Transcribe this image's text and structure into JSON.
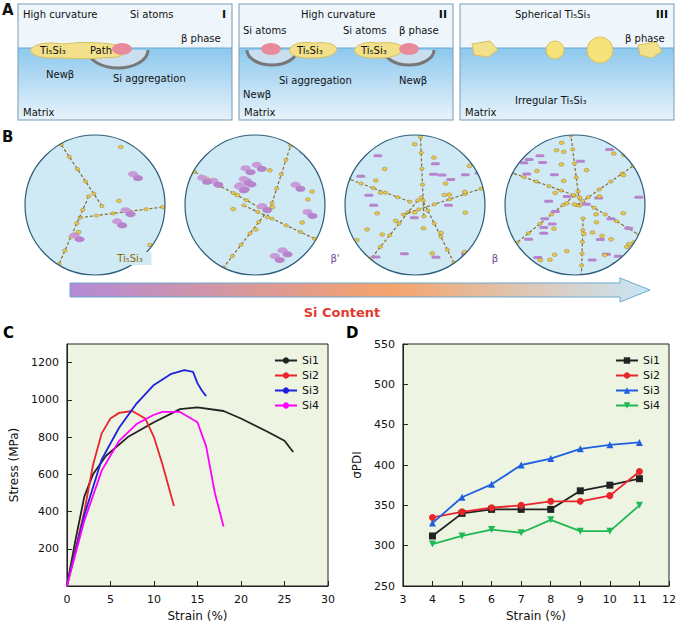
{
  "diagrams": {
    "A": {
      "letter": "A",
      "boxes": [
        {
          "numeral": "I",
          "labels": [
            "High curvature",
            "Si atoms",
            "β phase",
            "Ti₅Si₃",
            "Path",
            "Newβ",
            "Si aggregation",
            "Matrix"
          ]
        },
        {
          "numeral": "II",
          "labels": [
            "High curvature",
            "Si atoms",
            "Si atoms",
            "β phase",
            "Ti₅Si₃",
            "Ti₅Si₃",
            "Si aggregation",
            "Newβ",
            "Newβ",
            "Matrix"
          ]
        },
        {
          "numeral": "III",
          "labels": [
            "Spherical Ti₅Si₃",
            "β phase",
            "Irregular Ti₅Si₃",
            "Matrix"
          ]
        }
      ]
    },
    "B": {
      "letter": "B",
      "labels": [
        "Ti₅Si₃",
        "β'",
        "β"
      ],
      "arrow_label": "Si Content"
    }
  },
  "chart_data": [
    {
      "panel": "C",
      "type": "line",
      "xlabel": "Strain (%)",
      "ylabel": "Stress (MPa)",
      "xlim": [
        0,
        30
      ],
      "xticks": [
        0,
        5,
        10,
        15,
        20,
        25,
        30
      ],
      "ylim": [
        0,
        1300
      ],
      "yticks": [
        200,
        400,
        600,
        800,
        1000,
        1200
      ],
      "grid": false,
      "legend": "upper right",
      "series": [
        {
          "name": "Si1",
          "color": "#222222",
          "x": [
            0,
            1,
            2,
            3,
            4.5,
            7,
            10,
            13,
            15,
            18,
            20,
            23,
            25,
            26
          ],
          "values": [
            0,
            250,
            480,
            600,
            700,
            800,
            880,
            950,
            960,
            940,
            900,
            830,
            780,
            720
          ]
        },
        {
          "name": "Si2",
          "color": "#e8262a",
          "x": [
            0,
            1,
            2,
            3,
            4,
            5,
            6,
            7.5,
            9,
            10,
            11,
            12.3
          ],
          "values": [
            0,
            200,
            400,
            650,
            820,
            900,
            930,
            940,
            900,
            800,
            650,
            430
          ]
        },
        {
          "name": "Si3",
          "color": "#2020e0",
          "x": [
            0,
            2,
            4,
            6,
            8,
            10,
            12,
            13.5,
            14.5,
            15,
            15.5,
            16
          ],
          "values": [
            0,
            380,
            680,
            850,
            980,
            1080,
            1140,
            1160,
            1150,
            1090,
            1050,
            1020
          ]
        },
        {
          "name": "Si4",
          "color": "#ff00ff",
          "x": [
            0,
            2,
            4,
            6,
            8,
            10,
            11,
            13,
            15,
            16,
            17,
            18
          ],
          "values": [
            0,
            350,
            620,
            780,
            870,
            920,
            935,
            935,
            880,
            750,
            500,
            320
          ]
        }
      ]
    },
    {
      "panel": "D",
      "type": "line",
      "xlabel": "Strain (%)",
      "ylabel": "σPDI",
      "xlim": [
        3,
        12
      ],
      "xticks": [
        3,
        4,
        5,
        6,
        7,
        8,
        9,
        10,
        11,
        12
      ],
      "ylim": [
        250,
        550
      ],
      "yticks": [
        250,
        300,
        350,
        400,
        450,
        500,
        550
      ],
      "grid": false,
      "legend": "upper right",
      "x": [
        4,
        5,
        6,
        7,
        8,
        9,
        10,
        11
      ],
      "series": [
        {
          "name": "Si1",
          "color": "#222222",
          "marker": "square",
          "values": [
            312,
            340,
            345,
            345,
            345,
            368,
            375,
            383
          ]
        },
        {
          "name": "Si2",
          "color": "#e8262a",
          "marker": "circle",
          "values": [
            335,
            342,
            347,
            350,
            355,
            355,
            362,
            392
          ]
        },
        {
          "name": "Si3",
          "color": "#2060e0",
          "marker": "triangle",
          "values": [
            328,
            360,
            376,
            400,
            408,
            420,
            425,
            428
          ]
        },
        {
          "name": "Si4",
          "color": "#1db954",
          "marker": "inverted_triangle",
          "values": [
            302,
            312,
            320,
            316,
            332,
            318,
            318,
            350
          ]
        }
      ]
    }
  ]
}
